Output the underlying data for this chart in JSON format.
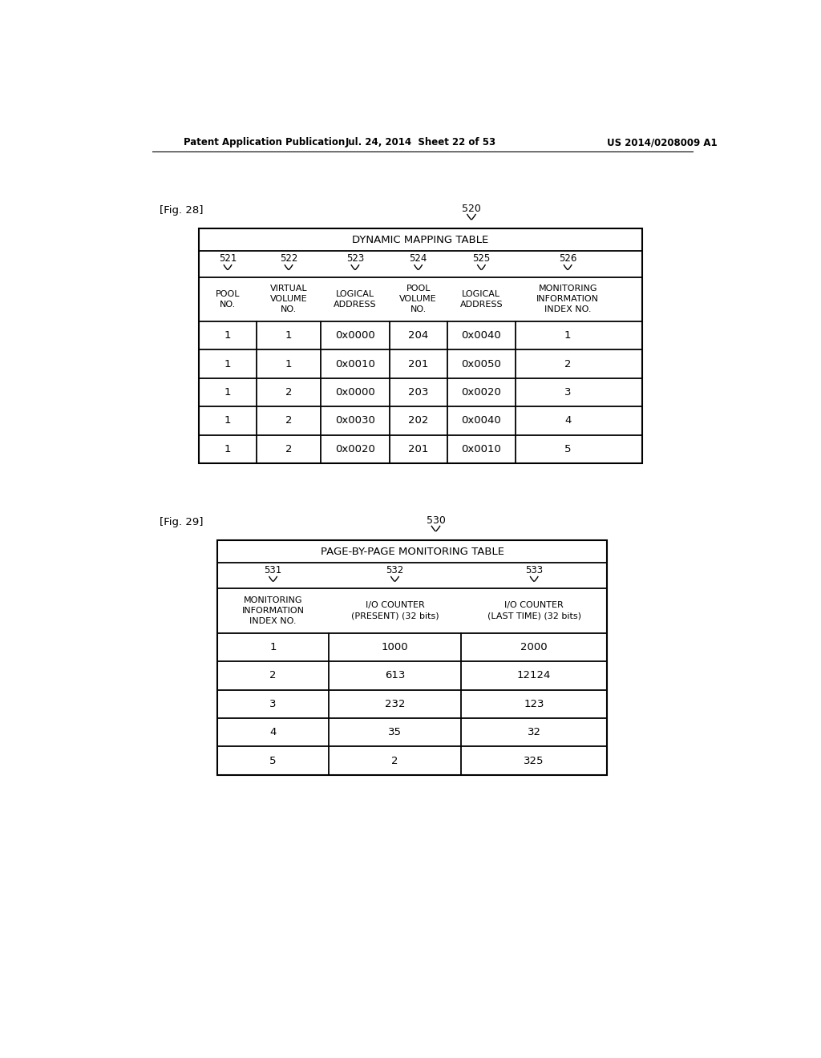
{
  "page_header_left": "Patent Application Publication",
  "page_header_mid": "Jul. 24, 2014  Sheet 22 of 53",
  "page_header_right": "US 2014/0208009 A1",
  "fig28_label": "[Fig. 28]",
  "fig29_label": "[Fig. 29]",
  "table1_id": "520",
  "table1_title": "DYNAMIC MAPPING TABLE",
  "table1_col_ids": [
    "521",
    "522",
    "523",
    "524",
    "525",
    "526"
  ],
  "table1_headers": [
    "POOL\nNO.",
    "VIRTUAL\nVOLUME\nNO.",
    "LOGICAL\nADDRESS",
    "POOL\nVOLUME\nNO.",
    "LOGICAL\nADDRESS",
    "MONITORING\nINFORMATION\nINDEX NO."
  ],
  "table1_data": [
    [
      "1",
      "1",
      "0x0000",
      "204",
      "0x0040",
      "1"
    ],
    [
      "1",
      "1",
      "0x0010",
      "201",
      "0x0050",
      "2"
    ],
    [
      "1",
      "2",
      "0x0000",
      "203",
      "0x0020",
      "3"
    ],
    [
      "1",
      "2",
      "0x0030",
      "202",
      "0x0040",
      "4"
    ],
    [
      "1",
      "2",
      "0x0020",
      "201",
      "0x0010",
      "5"
    ]
  ],
  "table2_id": "530",
  "table2_title": "PAGE-BY-PAGE MONITORING TABLE",
  "table2_col_ids": [
    "531",
    "532",
    "533"
  ],
  "table2_headers": [
    "MONITORING\nINFORMATION\nINDEX NO.",
    "I/O COUNTER\n(PRESENT) (32 bits)",
    "I/O COUNTER\n(LAST TIME) (32 bits)"
  ],
  "table2_data": [
    [
      "1",
      "1000",
      "2000"
    ],
    [
      "2",
      "613",
      "12124"
    ],
    [
      "3",
      "232",
      "123"
    ],
    [
      "4",
      "35",
      "32"
    ],
    [
      "5",
      "2",
      "325"
    ]
  ],
  "bg_color": "#ffffff",
  "text_color": "#000000",
  "line_color": "#000000"
}
